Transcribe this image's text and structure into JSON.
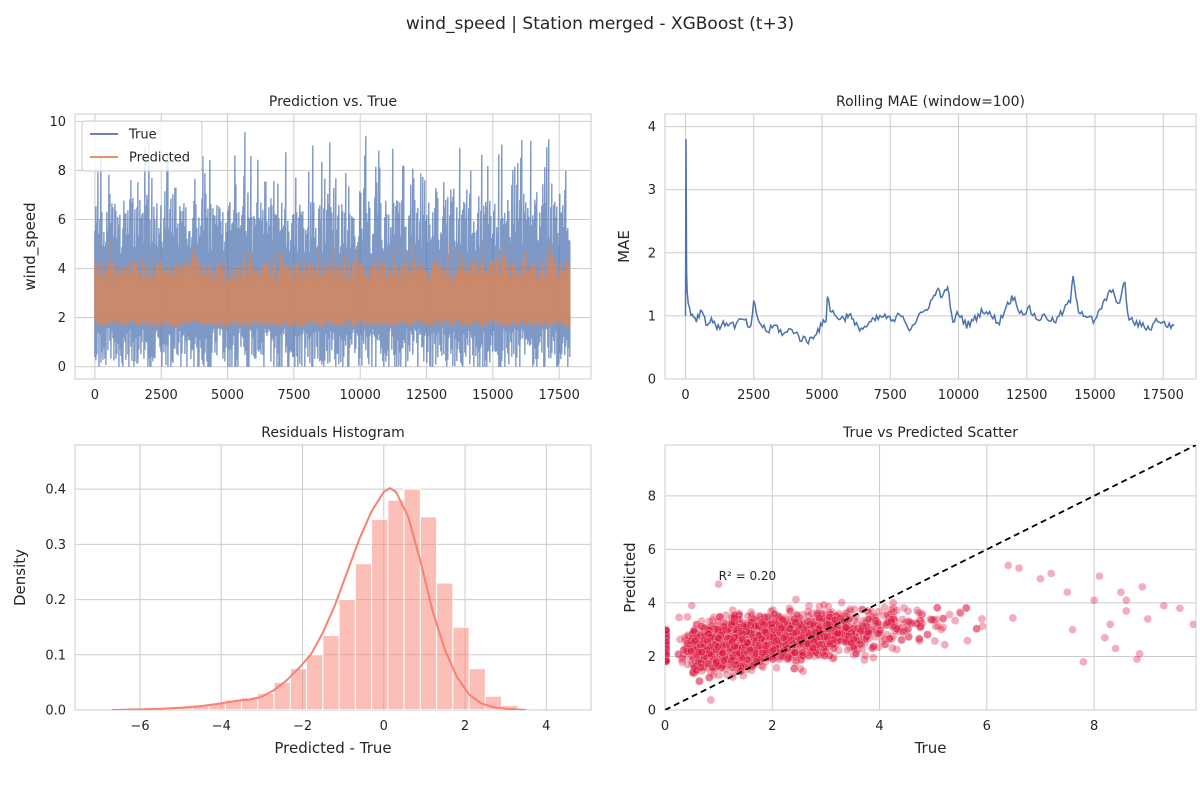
{
  "figure": {
    "title": "wind_speed | Station merged - XGBoost (t+3)"
  },
  "chart_data": [
    {
      "id": "pred",
      "type": "line",
      "title": "Prediction vs. True",
      "xlabel": "",
      "ylabel": "wind_speed",
      "xlim": [
        -750,
        18700
      ],
      "ylim": [
        -0.5,
        10.3
      ],
      "xticks": [
        0,
        2500,
        5000,
        7500,
        10000,
        12500,
        15000,
        17500
      ],
      "yticks": [
        0,
        2,
        4,
        6,
        8,
        10
      ],
      "n_points": 17900,
      "legend": {
        "position": "upper-left",
        "entries": [
          "True",
          "Predicted"
        ]
      },
      "series": [
        {
          "name": "True",
          "color": "#4c72b0",
          "typical_range": [
            0.0,
            6.5
          ],
          "max": 9.9
        },
        {
          "name": "Predicted",
          "color": "#dd8452",
          "typical_range": [
            1.6,
            4.3
          ],
          "max": 5.5
        }
      ]
    },
    {
      "id": "mae",
      "type": "line",
      "title": "Rolling MAE (window=100)",
      "xlabel": "",
      "ylabel": "MAE",
      "xlim": [
        -750,
        18700
      ],
      "ylim": [
        0,
        4.2
      ],
      "xticks": [
        0,
        2500,
        5000,
        7500,
        10000,
        12500,
        15000,
        17500
      ],
      "yticks": [
        0,
        1,
        2,
        3,
        4
      ],
      "series": [
        {
          "name": "Rolling MAE",
          "color": "#4c72b0",
          "x": [
            0,
            20,
            40,
            60,
            100,
            200,
            400,
            600,
            800,
            1000,
            1200,
            1500,
            1800,
            2100,
            2400,
            2500,
            2700,
            3000,
            3300,
            3600,
            3900,
            4200,
            4500,
            4800,
            5000,
            5150,
            5200,
            5300,
            5500,
            5800,
            6000,
            6200,
            6500,
            6800,
            7000,
            7300,
            7600,
            7900,
            8200,
            8500,
            8800,
            9100,
            9300,
            9400,
            9600,
            9700,
            9800,
            10000,
            10300,
            10600,
            10900,
            11200,
            11500,
            11800,
            12000,
            12300,
            12600,
            12900,
            13200,
            13500,
            13800,
            14100,
            14200,
            14400,
            14700,
            15000,
            15300,
            15600,
            15900,
            16100,
            16200,
            16400,
            16700,
            17000,
            17300,
            17600,
            17900
          ],
          "values": [
            1.0,
            3.8,
            1.7,
            1.4,
            1.2,
            1.05,
            0.95,
            1.1,
            0.85,
            0.95,
            0.8,
            0.9,
            0.85,
            0.95,
            0.8,
            1.2,
            0.9,
            0.75,
            0.85,
            0.7,
            0.8,
            0.65,
            0.6,
            0.75,
            0.85,
            0.95,
            1.35,
            1.1,
            1.0,
            0.95,
            1.05,
            0.85,
            0.8,
            0.9,
            0.95,
            1.0,
            0.9,
            1.05,
            0.8,
            0.95,
            1.1,
            1.3,
            1.45,
            1.25,
            1.5,
            1.1,
            0.9,
            1.05,
            0.85,
            0.95,
            1.1,
            1.0,
            0.9,
            1.2,
            1.3,
            1.05,
            1.1,
            0.95,
            1.0,
            0.9,
            1.05,
            1.25,
            1.6,
            1.1,
            1.0,
            0.9,
            1.2,
            1.4,
            1.2,
            1.55,
            1.0,
            0.9,
            0.85,
            0.8,
            0.95,
            0.85,
            0.85
          ]
        }
      ]
    },
    {
      "id": "hist",
      "type": "bar",
      "title": "Residuals Histogram",
      "xlabel": "Predicted - True",
      "ylabel": "Density",
      "xlim": [
        -7.6,
        5.1
      ],
      "ylim": [
        0,
        0.48
      ],
      "xticks": [
        -6,
        -4,
        -2,
        0,
        2,
        4
      ],
      "yticks": [
        0.0,
        0.1,
        0.2,
        0.3,
        0.4
      ],
      "bin_edges": [
        -6.7,
        -6.3,
        -5.9,
        -5.5,
        -5.1,
        -4.7,
        -4.3,
        -3.9,
        -3.5,
        -3.1,
        -2.7,
        -2.3,
        -1.9,
        -1.5,
        -1.1,
        -0.7,
        -0.3,
        0.1,
        0.5,
        0.9,
        1.3,
        1.7,
        2.1,
        2.5,
        2.9,
        3.3,
        3.7
      ],
      "values": [
        0.001,
        0.001,
        0.002,
        0.003,
        0.004,
        0.007,
        0.012,
        0.018,
        0.022,
        0.03,
        0.05,
        0.075,
        0.1,
        0.135,
        0.2,
        0.265,
        0.345,
        0.38,
        0.4,
        0.35,
        0.23,
        0.15,
        0.075,
        0.025,
        0.008,
        0.003
      ],
      "bar_color": "#fa8072",
      "kde": {
        "x": [
          -6.7,
          -6.0,
          -5.5,
          -5.0,
          -4.5,
          -4.0,
          -3.6,
          -3.3,
          -3.0,
          -2.7,
          -2.4,
          -2.1,
          -1.8,
          -1.5,
          -1.2,
          -0.9,
          -0.6,
          -0.3,
          0.0,
          0.15,
          0.3,
          0.6,
          0.9,
          1.2,
          1.5,
          1.8,
          2.1,
          2.4,
          2.7,
          3.0,
          3.5
        ],
        "values": [
          0.0,
          0.001,
          0.002,
          0.004,
          0.007,
          0.012,
          0.017,
          0.019,
          0.024,
          0.036,
          0.053,
          0.075,
          0.1,
          0.14,
          0.19,
          0.25,
          0.31,
          0.36,
          0.395,
          0.402,
          0.395,
          0.35,
          0.27,
          0.18,
          0.11,
          0.06,
          0.028,
          0.012,
          0.005,
          0.002,
          0.0
        ],
        "color": "#fa8072"
      }
    },
    {
      "id": "scatter",
      "type": "scatter",
      "title": "True vs Predicted Scatter",
      "xlabel": "True",
      "ylabel": "Predicted",
      "xlim": [
        0,
        9.9
      ],
      "ylim": [
        0,
        9.9
      ],
      "xticks": [
        0,
        2,
        4,
        6,
        8
      ],
      "yticks": [
        0,
        2,
        4,
        6,
        8
      ],
      "point_color": "#dc143c",
      "annotation": {
        "text": "R² = 0.20",
        "x": 1.0,
        "y": 4.85
      },
      "reference_line": {
        "from": [
          0,
          0
        ],
        "to": [
          9.9,
          9.9
        ],
        "style": "dashed",
        "color": "#000000"
      },
      "outliers": [
        {
          "x": 9.6,
          "y": 3.8
        },
        {
          "x": 9.85,
          "y": 3.2
        },
        {
          "x": 8.6,
          "y": 4.1
        },
        {
          "x": 8.9,
          "y": 4.6
        },
        {
          "x": 8.1,
          "y": 5.0
        },
        {
          "x": 7.5,
          "y": 4.4
        },
        {
          "x": 8.3,
          "y": 3.2
        },
        {
          "x": 8.4,
          "y": 2.3
        },
        {
          "x": 8.85,
          "y": 2.1
        },
        {
          "x": 7.2,
          "y": 5.1
        },
        {
          "x": 6.6,
          "y": 5.3
        },
        {
          "x": 0.5,
          "y": 3.9
        },
        {
          "x": 1.0,
          "y": 4.7
        },
        {
          "x": 6.4,
          "y": 5.4
        },
        {
          "x": 8.0,
          "y": 4.1
        },
        {
          "x": 8.6,
          "y": 3.7
        },
        {
          "x": 7.8,
          "y": 1.8
        },
        {
          "x": 8.2,
          "y": 2.7
        },
        {
          "x": 9.0,
          "y": 3.4
        },
        {
          "x": 7.0,
          "y": 4.9
        },
        {
          "x": 8.5,
          "y": 4.4
        },
        {
          "x": 9.3,
          "y": 3.9
        },
        {
          "x": 7.6,
          "y": 3.0
        },
        {
          "x": 8.8,
          "y": 1.9
        }
      ]
    }
  ]
}
